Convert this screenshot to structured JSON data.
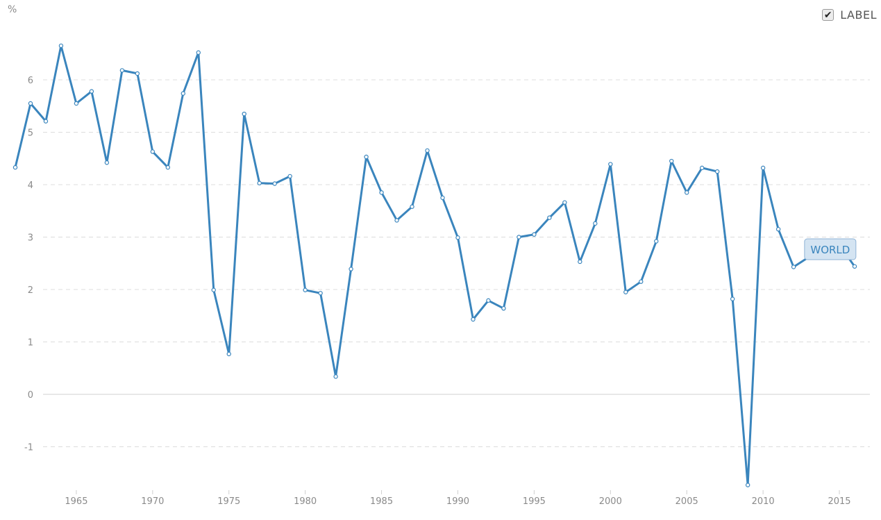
{
  "legend_toggle": {
    "label": "LABEL",
    "checked": true,
    "check_glyph": "✔"
  },
  "chart_data": {
    "type": "line",
    "unit_label": "%",
    "xlim": [
      1961,
      2017
    ],
    "ylim": [
      -1.7,
      7.2
    ],
    "x_ticks": [
      1965,
      1970,
      1975,
      1980,
      1985,
      1990,
      1995,
      2000,
      2005,
      2010,
      2015
    ],
    "y_ticks": [
      -1,
      0,
      1,
      2,
      3,
      4,
      5,
      6
    ],
    "grid": true,
    "series": [
      {
        "name": "WORLD",
        "color": "#3a85bd",
        "x": [
          1961,
          1962,
          1963,
          1964,
          1965,
          1966,
          1967,
          1968,
          1969,
          1970,
          1971,
          1972,
          1973,
          1974,
          1975,
          1976,
          1977,
          1978,
          1979,
          1980,
          1981,
          1982,
          1983,
          1984,
          1985,
          1986,
          1987,
          1988,
          1989,
          1990,
          1991,
          1992,
          1993,
          1994,
          1995,
          1996,
          1997,
          1998,
          1999,
          2000,
          2001,
          2002,
          2003,
          2004,
          2005,
          2006,
          2007,
          2008,
          2009,
          2010,
          2011,
          2012,
          2013,
          2014,
          2015,
          2016
        ],
        "values": [
          4.33,
          5.55,
          5.21,
          6.65,
          5.55,
          5.78,
          4.42,
          6.18,
          6.12,
          4.63,
          4.33,
          5.74,
          6.52,
          1.99,
          0.77,
          5.35,
          4.03,
          4.02,
          4.16,
          1.99,
          1.93,
          0.34,
          2.39,
          4.53,
          3.85,
          3.32,
          3.58,
          4.65,
          3.75,
          2.99,
          1.43,
          1.79,
          1.64,
          3.0,
          3.05,
          3.37,
          3.66,
          2.53,
          3.26,
          4.39,
          1.95,
          2.15,
          2.92,
          4.45,
          3.85,
          4.32,
          4.25,
          1.82,
          -1.73,
          4.32,
          3.15,
          2.43,
          2.62,
          2.85,
          2.85,
          2.44
        ]
      }
    ]
  }
}
